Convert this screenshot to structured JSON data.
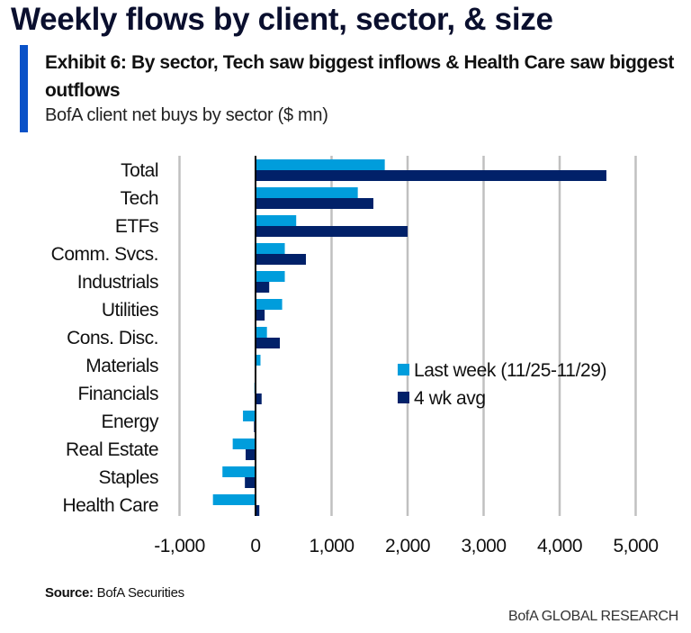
{
  "header": {
    "main_title": "Weekly flows by client, sector, & size",
    "exhibit_title": "Exhibit 6: By sector, Tech saw biggest inflows & Health Care saw biggest outflows",
    "subtitle": "BofA client net buys by sector ($ mn)"
  },
  "footer": {
    "source_label": "Source:",
    "source_text": " BofA Securities",
    "brand": "BofA GLOBAL RESEARCH"
  },
  "colors": {
    "last_week": "#009ddc",
    "four_wk_avg": "#012169",
    "accent": "#0a52c8",
    "grid": "#c0c0c0"
  },
  "chart_data": {
    "type": "bar",
    "orientation": "horizontal",
    "title": "BofA client net buys by sector ($ mn)",
    "xlabel": "",
    "ylabel": "",
    "xlim": [
      -1000,
      5000
    ],
    "xticks": [
      -1000,
      0,
      1000,
      2000,
      3000,
      4000,
      5000
    ],
    "xtick_labels": [
      "-1,000",
      "0",
      "1,000",
      "2,000",
      "3,000",
      "4,000",
      "5,000"
    ],
    "grid": true,
    "legend_position": "center-right",
    "categories": [
      "Total",
      "Tech",
      "ETFs",
      "Comm. Svcs.",
      "Industrials",
      "Utilities",
      "Cons. Disc.",
      "Materials",
      "Financials",
      "Energy",
      "Real Estate",
      "Staples",
      "Health Care"
    ],
    "series": [
      {
        "name": "Last week (11/25-11/29)",
        "values": [
          1700,
          1345,
          535,
          385,
          385,
          350,
          150,
          65,
          -15,
          -165,
          -300,
          -435,
          -560
        ]
      },
      {
        "name": "4 wk avg",
        "values": [
          4615,
          1550,
          2000,
          663,
          180,
          120,
          320,
          5,
          80,
          -20,
          -130,
          -140,
          50
        ]
      }
    ]
  }
}
